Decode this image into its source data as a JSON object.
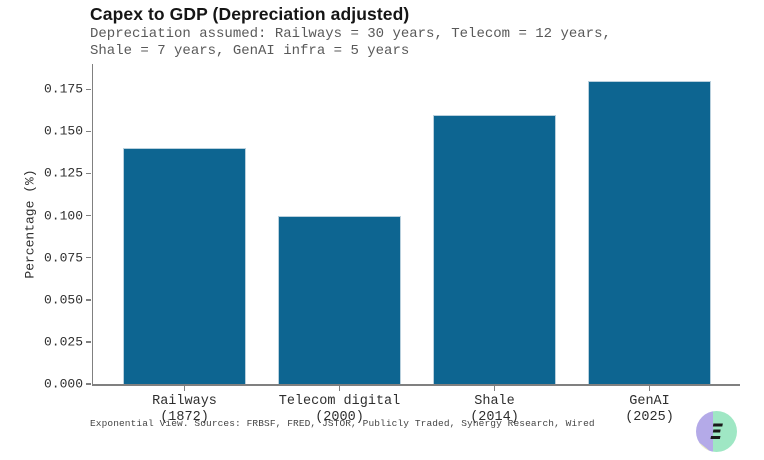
{
  "chart_data": {
    "type": "bar",
    "title": "Capex to GDP (Depreciation adjusted)",
    "subtitle": "Depreciation assumed: Railways = 30 years, Telecom = 12 years,\nShale = 7 years, GenAI infra = 5 years",
    "ylabel": "Percentage (%)",
    "xlabel": "",
    "categories": [
      {
        "name": "Railways",
        "year": "(1872)"
      },
      {
        "name": "Telecom digital",
        "year": "(2000)"
      },
      {
        "name": "Shale",
        "year": "(2014)"
      },
      {
        "name": "GenAI",
        "year": "(2025)"
      }
    ],
    "values": [
      0.14,
      0.1,
      0.16,
      0.18
    ],
    "yticks": [
      "0.000",
      "0.025",
      "0.050",
      "0.075",
      "0.100",
      "0.125",
      "0.150",
      "0.175"
    ],
    "ylim": [
      0,
      0.19
    ],
    "bar_color": "#0d6591",
    "grid": false,
    "legend": null
  },
  "footer": {
    "source": "Exponential View. Sources: FRBSF, FRED, JSTOR, Publicly Traded, Synergy Research, Wired"
  },
  "logo": {
    "glyph": "Ξ",
    "left_color": "#b4aae8",
    "right_color": "#9fe7c4",
    "accent_color": "#eef0bc",
    "glyph_color": "#1a1a1a"
  }
}
